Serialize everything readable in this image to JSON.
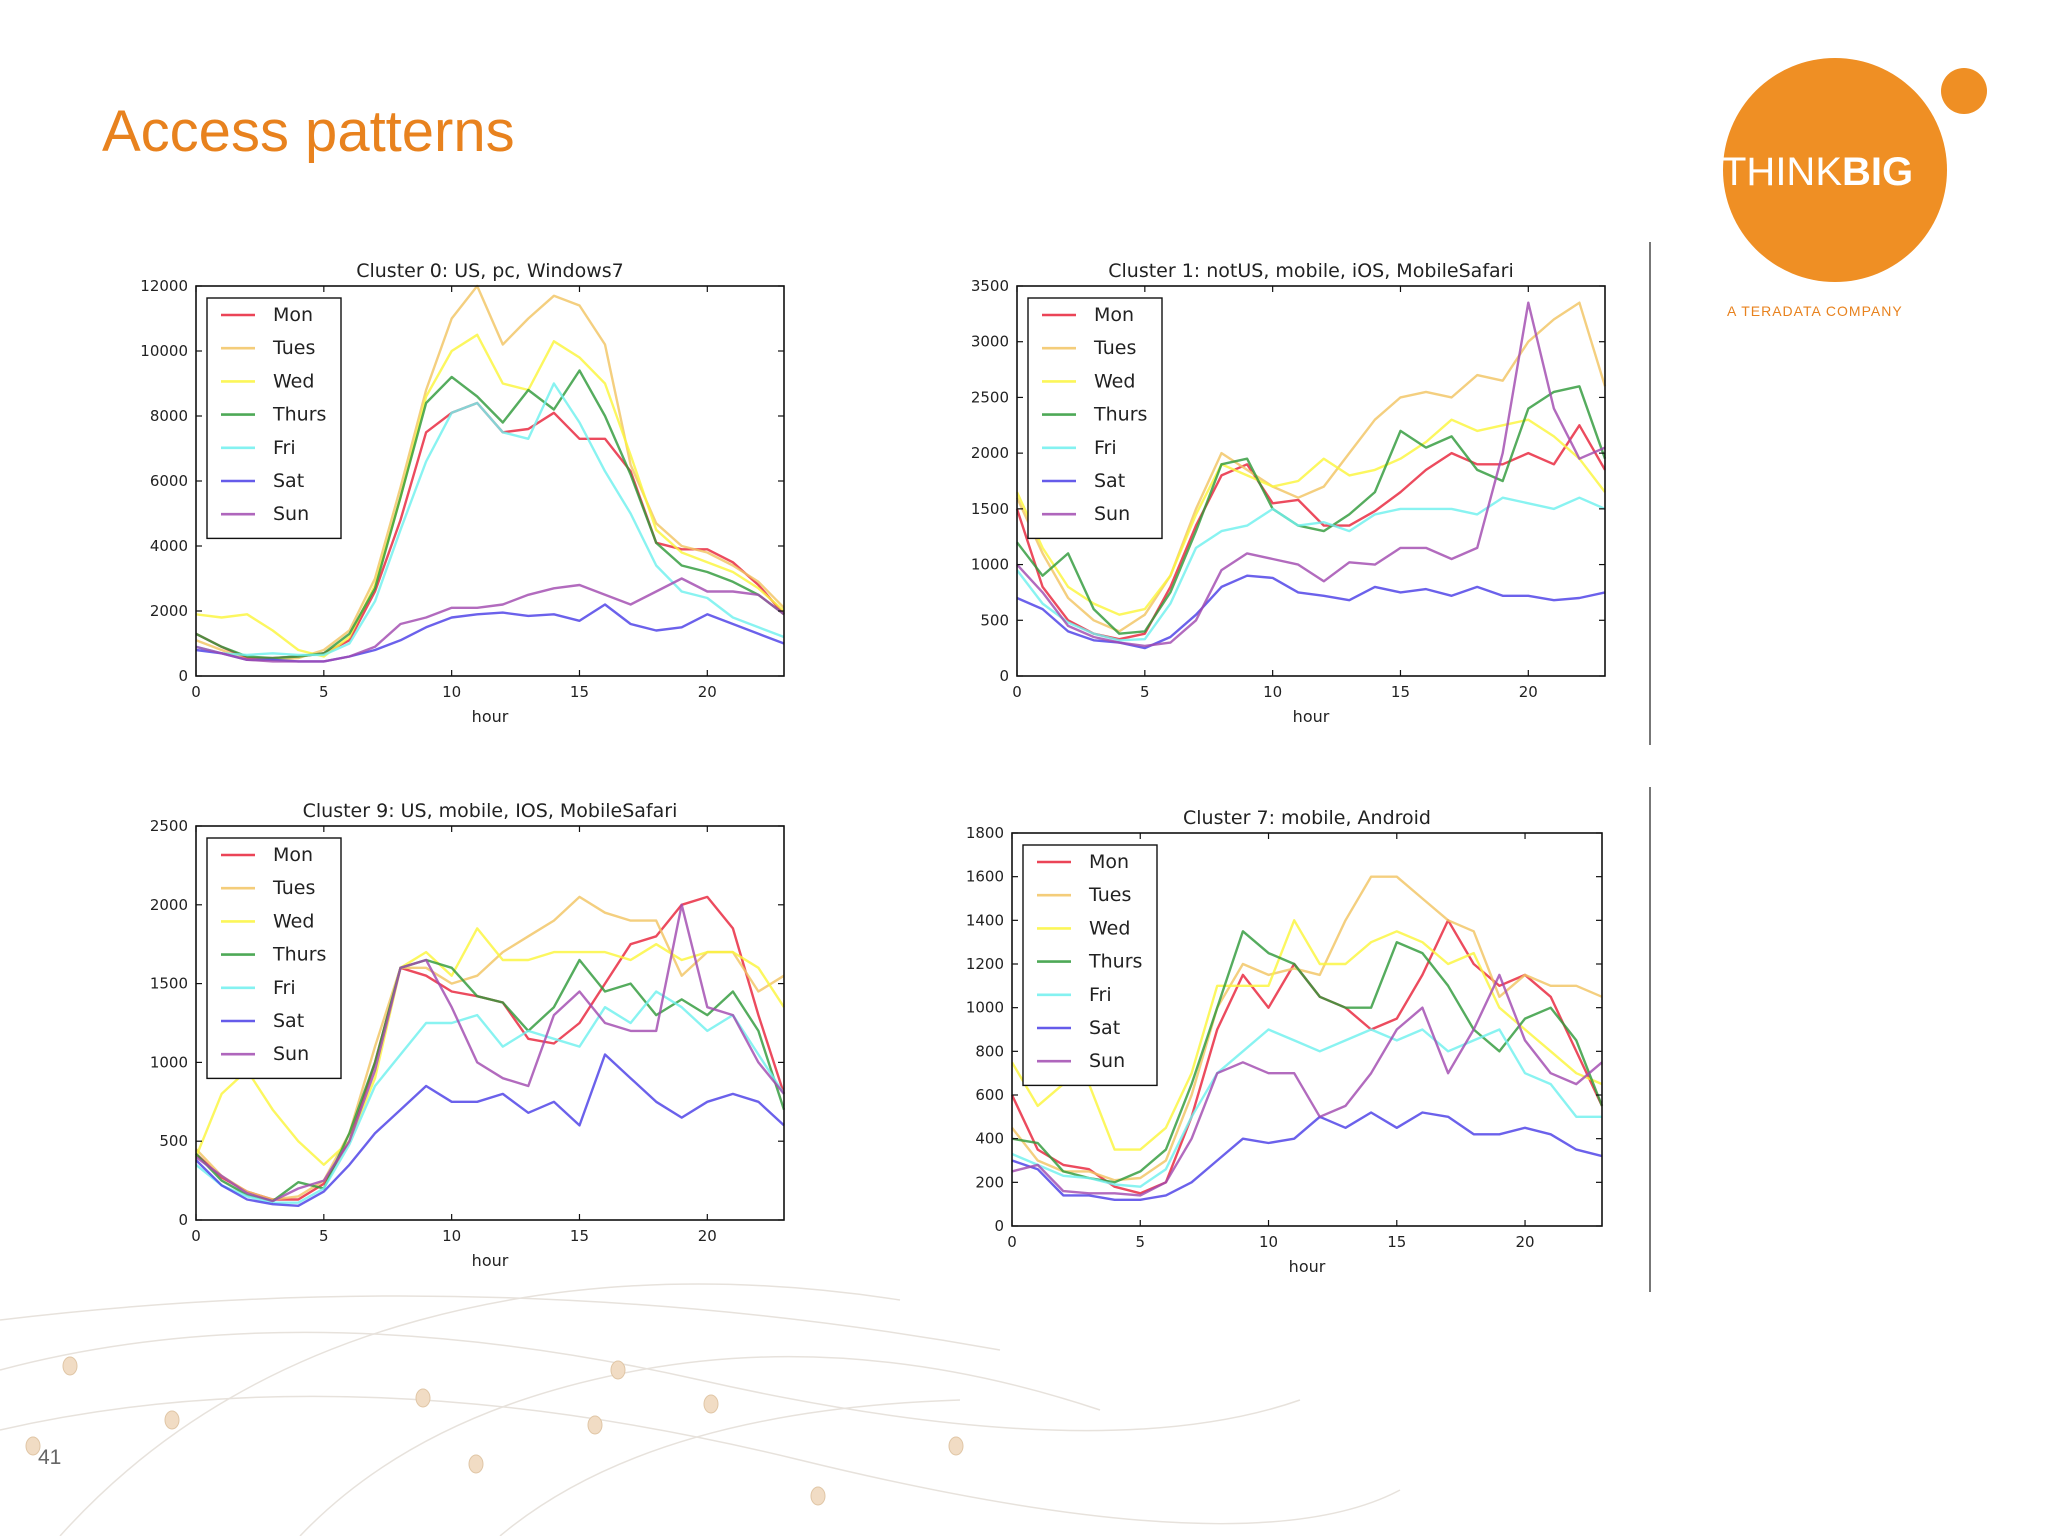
{
  "slide": {
    "title": "Access patterns",
    "page_number": "41",
    "logo_text_light": "THINK",
    "logo_text_bold": "BIG",
    "logo_tagline": "A TERADATA COMPANY"
  },
  "colors": {
    "accent": "#e8821e",
    "logo": "#ef8f24",
    "series": {
      "Mon": "#e8233a",
      "Tues": "#f2c463",
      "Wed": "#fbf53c",
      "Thurs": "#2f9a3a",
      "Fri": "#6ff0ee",
      "Sat": "#4a3ee6",
      "Sun": "#a14bb0"
    }
  },
  "chart_data": [
    {
      "type": "line",
      "title": "Cluster 0: US, pc, Windows7",
      "xlabel": "hour",
      "ylabel": "",
      "xlim": [
        0,
        23
      ],
      "ylim": [
        0,
        12000
      ],
      "xticks": [
        0,
        5,
        10,
        15,
        20
      ],
      "yticks": [
        0,
        2000,
        4000,
        6000,
        8000,
        10000,
        12000
      ],
      "legend": "top-left",
      "x": [
        0,
        1,
        2,
        3,
        4,
        5,
        6,
        7,
        8,
        9,
        10,
        11,
        12,
        13,
        14,
        15,
        16,
        17,
        18,
        19,
        20,
        21,
        22,
        23
      ],
      "series": [
        {
          "name": "Mon",
          "values": [
            1300,
            900,
            550,
            550,
            600,
            700,
            1100,
            2600,
            4800,
            7500,
            8100,
            8400,
            7500,
            7600,
            8100,
            7300,
            7300,
            6300,
            4100,
            3900,
            3900,
            3500,
            2800,
            1900
          ]
        },
        {
          "name": "Tues",
          "values": [
            1100,
            800,
            500,
            500,
            550,
            800,
            1400,
            3000,
            5800,
            8800,
            11000,
            12000,
            10200,
            11000,
            11700,
            11400,
            10200,
            6500,
            4700,
            4000,
            3800,
            3400,
            2900,
            2100
          ]
        },
        {
          "name": "Wed",
          "values": [
            1900,
            1800,
            1900,
            1400,
            800,
            600,
            1200,
            2800,
            5500,
            8600,
            10000,
            10500,
            9000,
            8800,
            10300,
            9800,
            9000,
            6800,
            4500,
            3800,
            3500,
            3200,
            2700,
            2000
          ]
        },
        {
          "name": "Thurs",
          "values": [
            1300,
            900,
            600,
            550,
            600,
            700,
            1300,
            2700,
            5500,
            8400,
            9200,
            8600,
            7800,
            8800,
            8200,
            9400,
            8000,
            6200,
            4100,
            3400,
            3200,
            2900,
            2500,
            1900
          ]
        },
        {
          "name": "Fri",
          "values": [
            900,
            700,
            650,
            700,
            650,
            650,
            1000,
            2300,
            4500,
            6600,
            8100,
            8400,
            7500,
            7300,
            9000,
            7800,
            6300,
            5000,
            3400,
            2600,
            2400,
            1800,
            1500,
            1200
          ]
        },
        {
          "name": "Sat",
          "values": [
            800,
            700,
            500,
            500,
            450,
            450,
            600,
            800,
            1100,
            1500,
            1800,
            1900,
            1950,
            1850,
            1900,
            1700,
            2200,
            1600,
            1400,
            1500,
            1900,
            1600,
            1300,
            1000
          ]
        },
        {
          "name": "Sun",
          "values": [
            900,
            700,
            500,
            450,
            450,
            450,
            600,
            900,
            1600,
            1800,
            2100,
            2100,
            2200,
            2500,
            2700,
            2800,
            2500,
            2200,
            2600,
            3000,
            2600,
            2600,
            2500,
            1900
          ]
        }
      ]
    },
    {
      "type": "line",
      "title": "Cluster 1: notUS, mobile, iOS, MobileSafari",
      "xlabel": "hour",
      "ylabel": "",
      "xlim": [
        0,
        23
      ],
      "ylim": [
        0,
        3500
      ],
      "xticks": [
        0,
        5,
        10,
        15,
        20
      ],
      "yticks": [
        0,
        500,
        1000,
        1500,
        2000,
        2500,
        3000,
        3500
      ],
      "legend": "top-left",
      "x": [
        0,
        1,
        2,
        3,
        4,
        5,
        6,
        7,
        8,
        9,
        10,
        11,
        12,
        13,
        14,
        15,
        16,
        17,
        18,
        19,
        20,
        21,
        22,
        23
      ],
      "series": [
        {
          "name": "Mon",
          "values": [
            1500,
            800,
            500,
            380,
            330,
            380,
            800,
            1350,
            1800,
            1900,
            1550,
            1580,
            1350,
            1350,
            1480,
            1650,
            1850,
            2000,
            1900,
            1900,
            2000,
            1900,
            2250,
            1850
          ]
        },
        {
          "name": "Tues",
          "values": [
            1600,
            1100,
            700,
            500,
            400,
            550,
            900,
            1500,
            2000,
            1850,
            1700,
            1600,
            1700,
            2000,
            2300,
            2500,
            2550,
            2500,
            2700,
            2650,
            3000,
            3200,
            3350,
            2600
          ]
        },
        {
          "name": "Wed",
          "values": [
            1650,
            1150,
            800,
            650,
            550,
            600,
            900,
            1450,
            1900,
            1800,
            1700,
            1750,
            1950,
            1800,
            1850,
            1950,
            2100,
            2300,
            2200,
            2250,
            2300,
            2150,
            1950,
            1650
          ]
        },
        {
          "name": "Thurs",
          "values": [
            1200,
            900,
            1100,
            600,
            380,
            400,
            750,
            1300,
            1900,
            1950,
            1500,
            1350,
            1300,
            1450,
            1650,
            2200,
            2050,
            2150,
            1850,
            1750,
            2400,
            2550,
            2600,
            1950
          ]
        },
        {
          "name": "Fri",
          "values": [
            950,
            650,
            480,
            380,
            320,
            330,
            650,
            1150,
            1300,
            1350,
            1500,
            1350,
            1380,
            1300,
            1450,
            1500,
            1500,
            1500,
            1450,
            1600,
            1550,
            1500,
            1600,
            1500
          ]
        },
        {
          "name": "Sat",
          "values": [
            700,
            600,
            400,
            320,
            300,
            250,
            350,
            550,
            800,
            900,
            880,
            750,
            720,
            680,
            800,
            750,
            780,
            720,
            800,
            720,
            720,
            680,
            700,
            750
          ]
        },
        {
          "name": "Sun",
          "values": [
            1000,
            750,
            450,
            350,
            300,
            270,
            300,
            500,
            950,
            1100,
            1050,
            1000,
            850,
            1020,
            1000,
            1150,
            1150,
            1050,
            1150,
            2000,
            3350,
            2400,
            1950,
            2050
          ]
        }
      ]
    },
    {
      "type": "line",
      "title": "Cluster 9: US, mobile, IOS, MobileSafari",
      "xlabel": "hour",
      "ylabel": "",
      "xlim": [
        0,
        23
      ],
      "ylim": [
        0,
        2500
      ],
      "xticks": [
        0,
        5,
        10,
        15,
        20
      ],
      "yticks": [
        0,
        500,
        1000,
        1500,
        2000,
        2500
      ],
      "legend": "top-left",
      "x": [
        0,
        1,
        2,
        3,
        4,
        5,
        6,
        7,
        8,
        9,
        10,
        11,
        12,
        13,
        14,
        15,
        16,
        17,
        18,
        19,
        20,
        21,
        22,
        23
      ],
      "series": [
        {
          "name": "Mon",
          "values": [
            420,
            270,
            180,
            130,
            130,
            230,
            500,
            1000,
            1600,
            1550,
            1450,
            1420,
            1380,
            1150,
            1120,
            1250,
            1500,
            1750,
            1800,
            2000,
            2050,
            1850,
            1300,
            800
          ]
        },
        {
          "name": "Tues",
          "values": [
            450,
            280,
            180,
            130,
            150,
            250,
            550,
            1100,
            1600,
            1600,
            1500,
            1550,
            1700,
            1800,
            1900,
            2050,
            1950,
            1900,
            1900,
            1550,
            1700,
            1700,
            1450,
            1550
          ]
        },
        {
          "name": "Wed",
          "values": [
            400,
            800,
            950,
            700,
            500,
            350,
            500,
            900,
            1600,
            1700,
            1550,
            1850,
            1650,
            1650,
            1700,
            1700,
            1700,
            1650,
            1750,
            1650,
            1700,
            1700,
            1600,
            1350
          ]
        },
        {
          "name": "Thurs",
          "values": [
            420,
            250,
            160,
            120,
            240,
            200,
            550,
            1000,
            1600,
            1650,
            1600,
            1420,
            1380,
            1200,
            1350,
            1650,
            1450,
            1500,
            1300,
            1400,
            1300,
            1450,
            1200,
            700
          ]
        },
        {
          "name": "Fri",
          "values": [
            350,
            220,
            150,
            110,
            110,
            200,
            480,
            850,
            1050,
            1250,
            1250,
            1300,
            1100,
            1200,
            1150,
            1100,
            1350,
            1250,
            1450,
            1350,
            1200,
            1300,
            1050,
            800
          ]
        },
        {
          "name": "Sat",
          "values": [
            380,
            220,
            130,
            100,
            90,
            180,
            350,
            550,
            700,
            850,
            750,
            750,
            800,
            680,
            750,
            600,
            1050,
            900,
            750,
            650,
            750,
            800,
            750,
            600
          ]
        },
        {
          "name": "Sun",
          "values": [
            400,
            280,
            170,
            120,
            200,
            250,
            500,
            950,
            1600,
            1650,
            1350,
            1000,
            900,
            850,
            1300,
            1450,
            1250,
            1200,
            1200,
            2000,
            1350,
            1300,
            1000,
            800
          ]
        }
      ]
    },
    {
      "type": "line",
      "title": "Cluster 7: mobile, Android",
      "xlabel": "hour",
      "ylabel": "",
      "xlim": [
        0,
        23
      ],
      "ylim": [
        0,
        1800
      ],
      "xticks": [
        0,
        5,
        10,
        15,
        20
      ],
      "yticks": [
        0,
        200,
        400,
        600,
        800,
        1000,
        1200,
        1400,
        1600,
        1800
      ],
      "legend": "top-left",
      "x": [
        0,
        1,
        2,
        3,
        4,
        5,
        6,
        7,
        8,
        9,
        10,
        11,
        12,
        13,
        14,
        15,
        16,
        17,
        18,
        19,
        20,
        21,
        22,
        23
      ],
      "series": [
        {
          "name": "Mon",
          "values": [
            600,
            350,
            280,
            260,
            180,
            150,
            200,
            500,
            900,
            1150,
            1000,
            1200,
            1050,
            1000,
            900,
            950,
            1150,
            1400,
            1200,
            1100,
            1150,
            1050,
            800,
            550
          ]
        },
        {
          "name": "Tues",
          "values": [
            450,
            300,
            250,
            250,
            210,
            220,
            300,
            600,
            1000,
            1200,
            1150,
            1180,
            1150,
            1400,
            1600,
            1600,
            1500,
            1400,
            1350,
            1050,
            1150,
            1100,
            1100,
            1050
          ]
        },
        {
          "name": "Wed",
          "values": [
            750,
            550,
            650,
            650,
            350,
            350,
            450,
            700,
            1100,
            1100,
            1100,
            1400,
            1200,
            1200,
            1300,
            1350,
            1300,
            1200,
            1250,
            1000,
            900,
            800,
            700,
            650
          ]
        },
        {
          "name": "Thurs",
          "values": [
            400,
            380,
            250,
            220,
            200,
            250,
            350,
            650,
            1000,
            1350,
            1250,
            1200,
            1050,
            1000,
            1000,
            1300,
            1250,
            1100,
            900,
            800,
            950,
            1000,
            850,
            550
          ]
        },
        {
          "name": "Fri",
          "values": [
            330,
            280,
            230,
            220,
            190,
            180,
            260,
            500,
            700,
            800,
            900,
            850,
            800,
            850,
            900,
            850,
            900,
            800,
            850,
            900,
            700,
            650,
            500,
            500
          ]
        },
        {
          "name": "Sat",
          "values": [
            300,
            260,
            140,
            140,
            120,
            120,
            140,
            200,
            300,
            400,
            380,
            400,
            500,
            450,
            520,
            450,
            520,
            500,
            420,
            420,
            450,
            420,
            350,
            320
          ]
        },
        {
          "name": "Sun",
          "values": [
            250,
            280,
            160,
            150,
            150,
            140,
            200,
            400,
            700,
            750,
            700,
            700,
            500,
            550,
            700,
            900,
            1000,
            700,
            900,
            1150,
            850,
            700,
            650,
            750
          ]
        }
      ]
    }
  ]
}
